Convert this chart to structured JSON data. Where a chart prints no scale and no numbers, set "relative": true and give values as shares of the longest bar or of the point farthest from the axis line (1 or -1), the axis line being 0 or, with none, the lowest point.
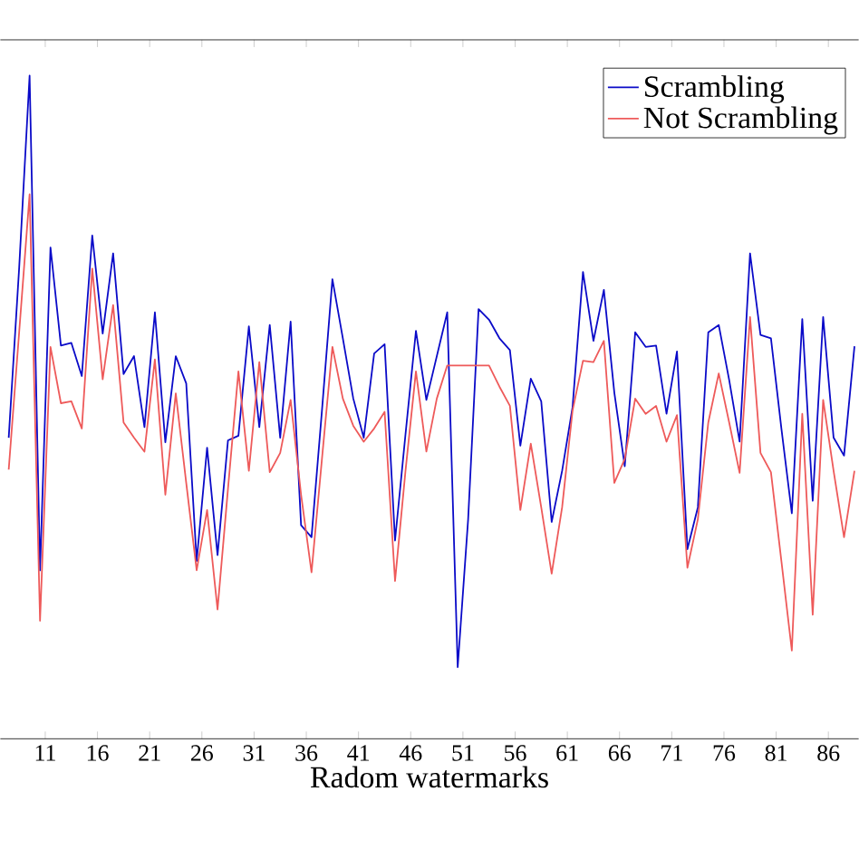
{
  "chart_data": {
    "type": "line",
    "relative": true,
    "xlabel": "Radom watermarks",
    "xlim": [
      6.7,
      88.9
    ],
    "xticks": [
      11,
      16,
      21,
      26,
      31,
      36,
      41,
      46,
      51,
      56,
      61,
      66,
      71,
      76,
      81,
      86
    ],
    "legend": "top right",
    "x": [
      7.5,
      8.5,
      9.5,
      10.5,
      11.5,
      12.5,
      13.5,
      14.5,
      15.5,
      16.5,
      17.5,
      18.5,
      19.5,
      20.5,
      21.5,
      22.5,
      23.5,
      24.5,
      25.5,
      26.5,
      27.5,
      28.5,
      29.5,
      30.5,
      31.5,
      32.5,
      33.5,
      34.5,
      35.5,
      36.5,
      37.5,
      38.5,
      39.5,
      40.5,
      41.5,
      42.5,
      43.5,
      44.5,
      45.5,
      46.5,
      47.5,
      48.5,
      49.5,
      50.5,
      51.5,
      52.5,
      53.5,
      54.5,
      55.5,
      56.5,
      57.5,
      58.5,
      59.5,
      60.5,
      61.5,
      62.5,
      63.5,
      64.5,
      65.5,
      66.5,
      67.5,
      68.5,
      69.5,
      70.5,
      71.5,
      72.5,
      73.5,
      74.5,
      75.5,
      76.5,
      77.5,
      78.5,
      79.5,
      80.5,
      81.5,
      82.5,
      83.5,
      84.5,
      85.5,
      86.5,
      87.5,
      88.5
    ],
    "series": [
      {
        "name": "Scrambling",
        "color": "#0a0ac8",
        "values": [
          0.454,
          0.71,
          1.0,
          0.254,
          0.741,
          0.593,
          0.597,
          0.547,
          0.759,
          0.611,
          0.732,
          0.55,
          0.577,
          0.47,
          0.643,
          0.447,
          0.577,
          0.536,
          0.268,
          0.439,
          0.277,
          0.45,
          0.457,
          0.622,
          0.47,
          0.624,
          0.454,
          0.629,
          0.322,
          0.304,
          0.495,
          0.693,
          0.604,
          0.513,
          0.454,
          0.581,
          0.595,
          0.299,
          0.459,
          0.615,
          0.511,
          0.577,
          0.643,
          0.108,
          0.331,
          0.648,
          0.632,
          0.604,
          0.586,
          0.442,
          0.543,
          0.509,
          0.327,
          0.404,
          0.5,
          0.704,
          0.6,
          0.677,
          0.522,
          0.411,
          0.613,
          0.591,
          0.593,
          0.49,
          0.584,
          0.286,
          0.349,
          0.613,
          0.624,
          0.541,
          0.448,
          0.732,
          0.609,
          0.604,
          0.468,
          0.34,
          0.633,
          0.359,
          0.636,
          0.454,
          0.427,
          0.592
        ]
      },
      {
        "name": "Not Scrambling",
        "color": "#ee5a5a",
        "values": [
          0.406,
          0.613,
          0.821,
          0.178,
          0.591,
          0.506,
          0.509,
          0.468,
          0.709,
          0.542,
          0.654,
          0.477,
          0.454,
          0.433,
          0.572,
          0.368,
          0.521,
          0.386,
          0.254,
          0.345,
          0.195,
          0.377,
          0.554,
          0.404,
          0.568,
          0.402,
          0.431,
          0.511,
          0.368,
          0.251,
          0.422,
          0.591,
          0.513,
          0.472,
          0.448,
          0.468,
          0.493,
          0.238,
          0.404,
          0.554,
          0.433,
          0.513,
          0.563,
          0.563,
          0.563,
          0.563,
          0.563,
          0.531,
          0.502,
          0.345,
          0.445,
          0.349,
          0.249,
          0.349,
          0.495,
          0.57,
          0.568,
          0.6,
          0.386,
          0.422,
          0.513,
          0.49,
          0.502,
          0.448,
          0.488,
          0.258,
          0.331,
          0.477,
          0.551,
          0.477,
          0.401,
          0.636,
          0.431,
          0.402,
          0.268,
          0.133,
          0.49,
          0.187,
          0.511,
          0.404,
          0.304,
          0.404
        ]
      }
    ]
  }
}
